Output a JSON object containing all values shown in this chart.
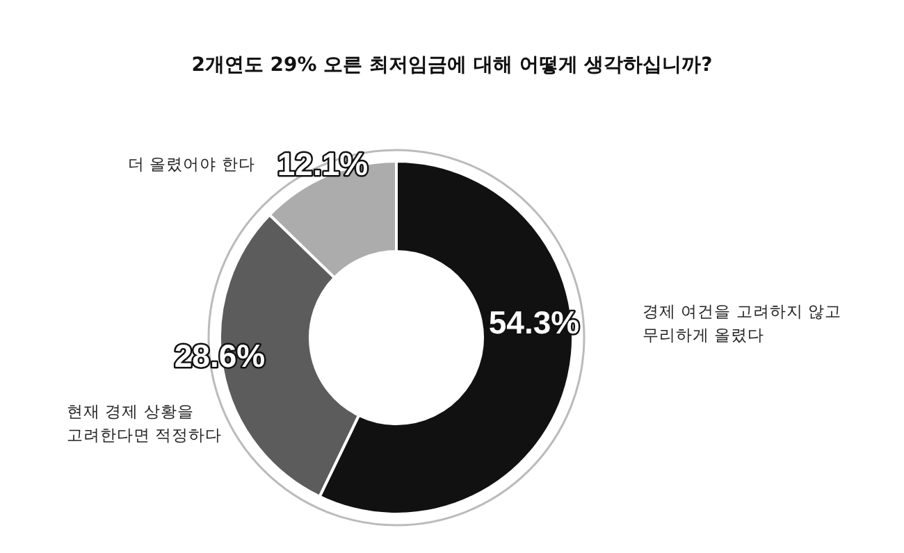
{
  "chart_data": {
    "type": "donut",
    "title": "2개연도 29% 오른 최저임금에 대해 어떻게 생각하십니까?",
    "categories": [
      "경제 여건을 고려하지 않고 무리하게 올렸다",
      "현재 경제 상황을 고려한다면 적정하다",
      "더 올렸어야 한다"
    ],
    "values": [
      54.3,
      28.6,
      12.1
    ],
    "colors": [
      "#111111",
      "#5c5c5c",
      "#acacac"
    ],
    "value_labels": [
      "54.3%",
      "28.6%",
      "12.1%"
    ]
  }
}
